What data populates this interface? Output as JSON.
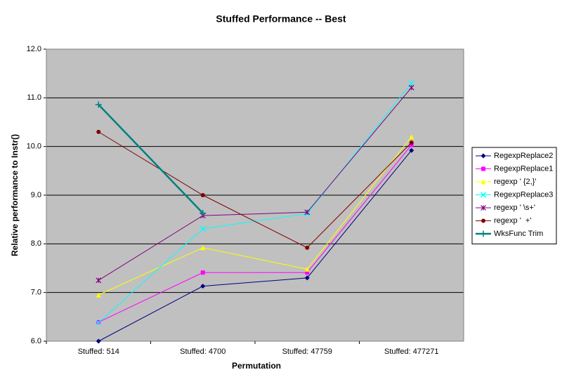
{
  "chart_data": {
    "type": "line",
    "title": "Stuffed Performance -- Best",
    "x_label": "Permutation",
    "y_label": "Relative performance to Instr()",
    "categories": [
      "Stuffed: 514",
      "Stuffed: 4700",
      "Stuffed: 47759",
      "Stuffed: 477271"
    ],
    "ylim": [
      6,
      12
    ],
    "yticks": [
      {
        "value": 6,
        "label": "6.0"
      },
      {
        "value": 7,
        "label": "7.0"
      },
      {
        "value": 8,
        "label": "8.0"
      },
      {
        "value": 9,
        "label": "9.0"
      },
      {
        "value": 10,
        "label": "10.0"
      },
      {
        "value": 11,
        "label": "11.0"
      },
      {
        "value": 12,
        "label": "12.0"
      }
    ],
    "grid": true,
    "legend": "right",
    "series": [
      {
        "name": "RegexpReplace2",
        "color": "#000080",
        "marker": "diamond",
        "values": [
          6.0,
          7.13,
          7.3,
          9.92
        ]
      },
      {
        "name": "RegexpReplace1",
        "color": "#FF00FF",
        "marker": "square",
        "values": [
          6.39,
          7.41,
          7.41,
          10.03
        ]
      },
      {
        "name": "regexp ' {2,}'",
        "color": "#FFFF00",
        "marker": "triangle",
        "values": [
          6.95,
          7.92,
          7.48,
          10.2
        ]
      },
      {
        "name": "RegexpReplace3",
        "color": "#00FFFF",
        "marker": "cross",
        "values": [
          6.38,
          8.31,
          8.62,
          11.3
        ]
      },
      {
        "name": "regexp ' \\s+'",
        "color": "#800080",
        "marker": "star",
        "values": [
          7.25,
          8.58,
          8.65,
          11.21
        ]
      },
      {
        "name": "regexp '  +'",
        "color": "#800000",
        "marker": "circle",
        "values": [
          10.3,
          9.0,
          7.92,
          10.08
        ]
      },
      {
        "name": "WksFunc Trim",
        "color": "#008080",
        "marker": "plus",
        "values": [
          10.86,
          8.63,
          null,
          null
        ]
      }
    ]
  }
}
